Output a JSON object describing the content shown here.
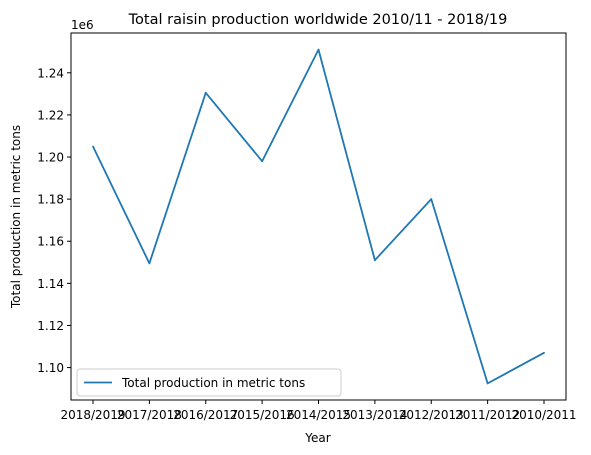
{
  "chart_data": {
    "type": "line",
    "title": "Total raisin production worldwide 2010/11 - 2018/19",
    "xlabel": "Year",
    "ylabel": "Total production in metric tons",
    "y_offset_label": "1e6",
    "categories": [
      "2018/2019",
      "2017/2018",
      "2016/2017",
      "2015/2016",
      "2014/2015",
      "2013/2014",
      "2012/2013",
      "2011/2012",
      "2010/2011"
    ],
    "series": [
      {
        "name": "Total production in metric tons",
        "values": [
          1205000,
          1149500,
          1230500,
          1198000,
          1251000,
          1151000,
          1180000,
          1092500,
          1107000
        ],
        "color": "#1f77b4"
      }
    ],
    "y_ticks": [
      "1.10",
      "1.12",
      "1.14",
      "1.16",
      "1.18",
      "1.20",
      "1.22",
      "1.24"
    ],
    "y_tick_values": [
      1100000,
      1120000,
      1140000,
      1160000,
      1180000,
      1200000,
      1220000,
      1240000
    ],
    "ylim": [
      1084600,
      1258900
    ],
    "grid": false,
    "legend_position": "lower-left"
  }
}
